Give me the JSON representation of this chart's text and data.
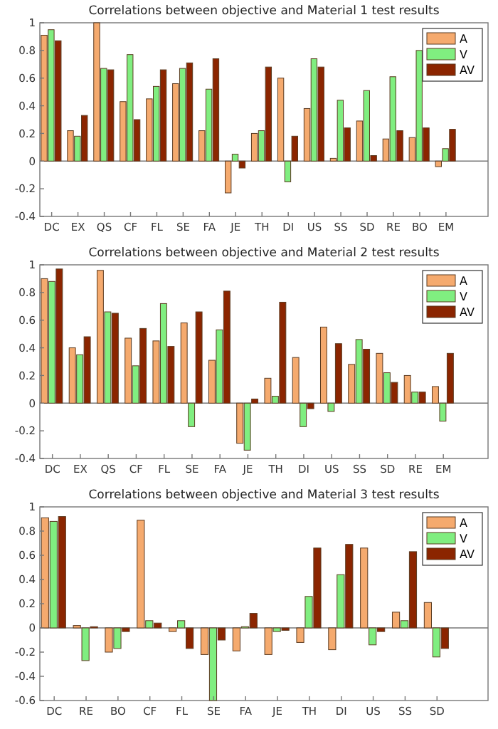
{
  "chart_data": [
    {
      "type": "bar",
      "title": "Correlations between objective and Material 1 test results",
      "categories": [
        "DC",
        "EX",
        "QS",
        "CF",
        "FL",
        "SE",
        "FA",
        "JE",
        "TH",
        "DI",
        "US",
        "SS",
        "SD",
        "RE",
        "BO",
        "EM"
      ],
      "series": [
        {
          "name": "A",
          "color": "#f5aa6e",
          "values": [
            0.91,
            0.22,
            1.0,
            0.43,
            0.45,
            0.56,
            0.22,
            -0.23,
            0.2,
            0.6,
            0.38,
            0.02,
            0.29,
            0.16,
            0.17,
            -0.04
          ]
        },
        {
          "name": "V",
          "color": "#80ee80",
          "values": [
            0.95,
            0.18,
            0.67,
            0.77,
            0.54,
            0.67,
            0.52,
            0.05,
            0.22,
            -0.15,
            0.74,
            0.44,
            0.51,
            0.61,
            0.8,
            0.09
          ]
        },
        {
          "name": "AV",
          "color": "#8b2500",
          "values": [
            0.87,
            0.33,
            0.66,
            0.3,
            0.66,
            0.71,
            0.74,
            -0.05,
            0.68,
            0.18,
            0.68,
            0.24,
            0.04,
            0.22,
            0.24,
            0.23
          ]
        }
      ],
      "ylim": [
        -0.4,
        1
      ],
      "yticks": [
        -0.4,
        -0.2,
        0,
        0.2,
        0.4,
        0.6,
        0.8,
        1
      ],
      "legend": "top right"
    },
    {
      "type": "bar",
      "title": "Correlations between objective and Material 2 test results",
      "categories": [
        "DC",
        "EX",
        "QS",
        "CF",
        "FL",
        "SE",
        "FA",
        "JE",
        "TH",
        "DI",
        "US",
        "SS",
        "SD",
        "RE",
        "EM"
      ],
      "series": [
        {
          "name": "A",
          "color": "#f5aa6e",
          "values": [
            0.9,
            0.4,
            0.96,
            0.47,
            0.45,
            0.58,
            0.31,
            -0.29,
            0.18,
            0.33,
            0.55,
            0.28,
            0.36,
            0.2,
            0.12
          ]
        },
        {
          "name": "V",
          "color": "#80ee80",
          "values": [
            0.88,
            0.35,
            0.66,
            0.27,
            0.72,
            -0.17,
            0.53,
            -0.34,
            0.05,
            -0.17,
            -0.06,
            0.46,
            0.22,
            0.08,
            -0.13
          ]
        },
        {
          "name": "AV",
          "color": "#8b2500",
          "values": [
            0.97,
            0.48,
            0.65,
            0.54,
            0.41,
            0.66,
            0.81,
            0.03,
            0.73,
            -0.04,
            0.43,
            0.39,
            0.15,
            0.08,
            0.36
          ]
        }
      ],
      "ylim": [
        -0.4,
        1
      ],
      "yticks": [
        -0.4,
        -0.2,
        0,
        0.2,
        0.4,
        0.6,
        0.8,
        1
      ],
      "legend": "top right"
    },
    {
      "type": "bar",
      "title": "Correlations between objective and Material 3 test results",
      "categories": [
        "DC",
        "RE",
        "BO",
        "CF",
        "FL",
        "SE",
        "FA",
        "JE",
        "TH",
        "DI",
        "US",
        "SS",
        "SD"
      ],
      "series": [
        {
          "name": "A",
          "color": "#f5aa6e",
          "values": [
            0.91,
            0.02,
            -0.2,
            0.89,
            -0.03,
            -0.22,
            -0.19,
            -0.22,
            -0.12,
            -0.18,
            0.66,
            0.13,
            0.21
          ]
        },
        {
          "name": "V",
          "color": "#80ee80",
          "values": [
            0.88,
            -0.27,
            -0.17,
            0.06,
            0.06,
            -0.6,
            0.01,
            -0.03,
            0.26,
            0.44,
            -0.14,
            0.06,
            -0.24
          ]
        },
        {
          "name": "AV",
          "color": "#8b2500",
          "values": [
            0.92,
            0.01,
            -0.03,
            0.04,
            -0.17,
            -0.1,
            0.12,
            -0.02,
            0.66,
            0.69,
            -0.03,
            0.63,
            -0.17
          ]
        }
      ],
      "ylim": [
        -0.6,
        1
      ],
      "yticks": [
        -0.6,
        -0.4,
        -0.2,
        0,
        0.2,
        0.4,
        0.6,
        0.8,
        1
      ],
      "legend": "top right"
    }
  ]
}
